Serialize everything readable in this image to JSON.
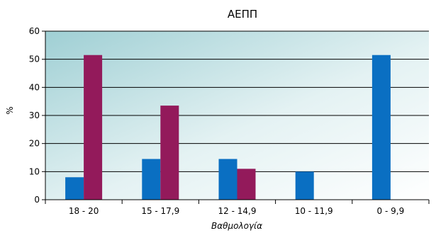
{
  "chart_data": {
    "type": "bar",
    "title": "ΑΕΠΠ",
    "xlabel": "Βαθμολογία",
    "ylabel": "%",
    "ylim": [
      0,
      60
    ],
    "yticks": [
      0,
      10,
      20,
      30,
      40,
      50,
      60
    ],
    "grid": true,
    "legend": "none",
    "categories": [
      "18 - 20",
      "15 - 17,9",
      "12 - 14,9",
      "10 - 11,9",
      "0 - 9,9"
    ],
    "series": [
      {
        "values": [
          8,
          14.5,
          14.5,
          10,
          51.5
        ],
        "color": "#0a6fc2"
      },
      {
        "values": [
          51.5,
          33.5,
          11,
          0,
          0
        ],
        "color": "#931a5b"
      }
    ]
  }
}
